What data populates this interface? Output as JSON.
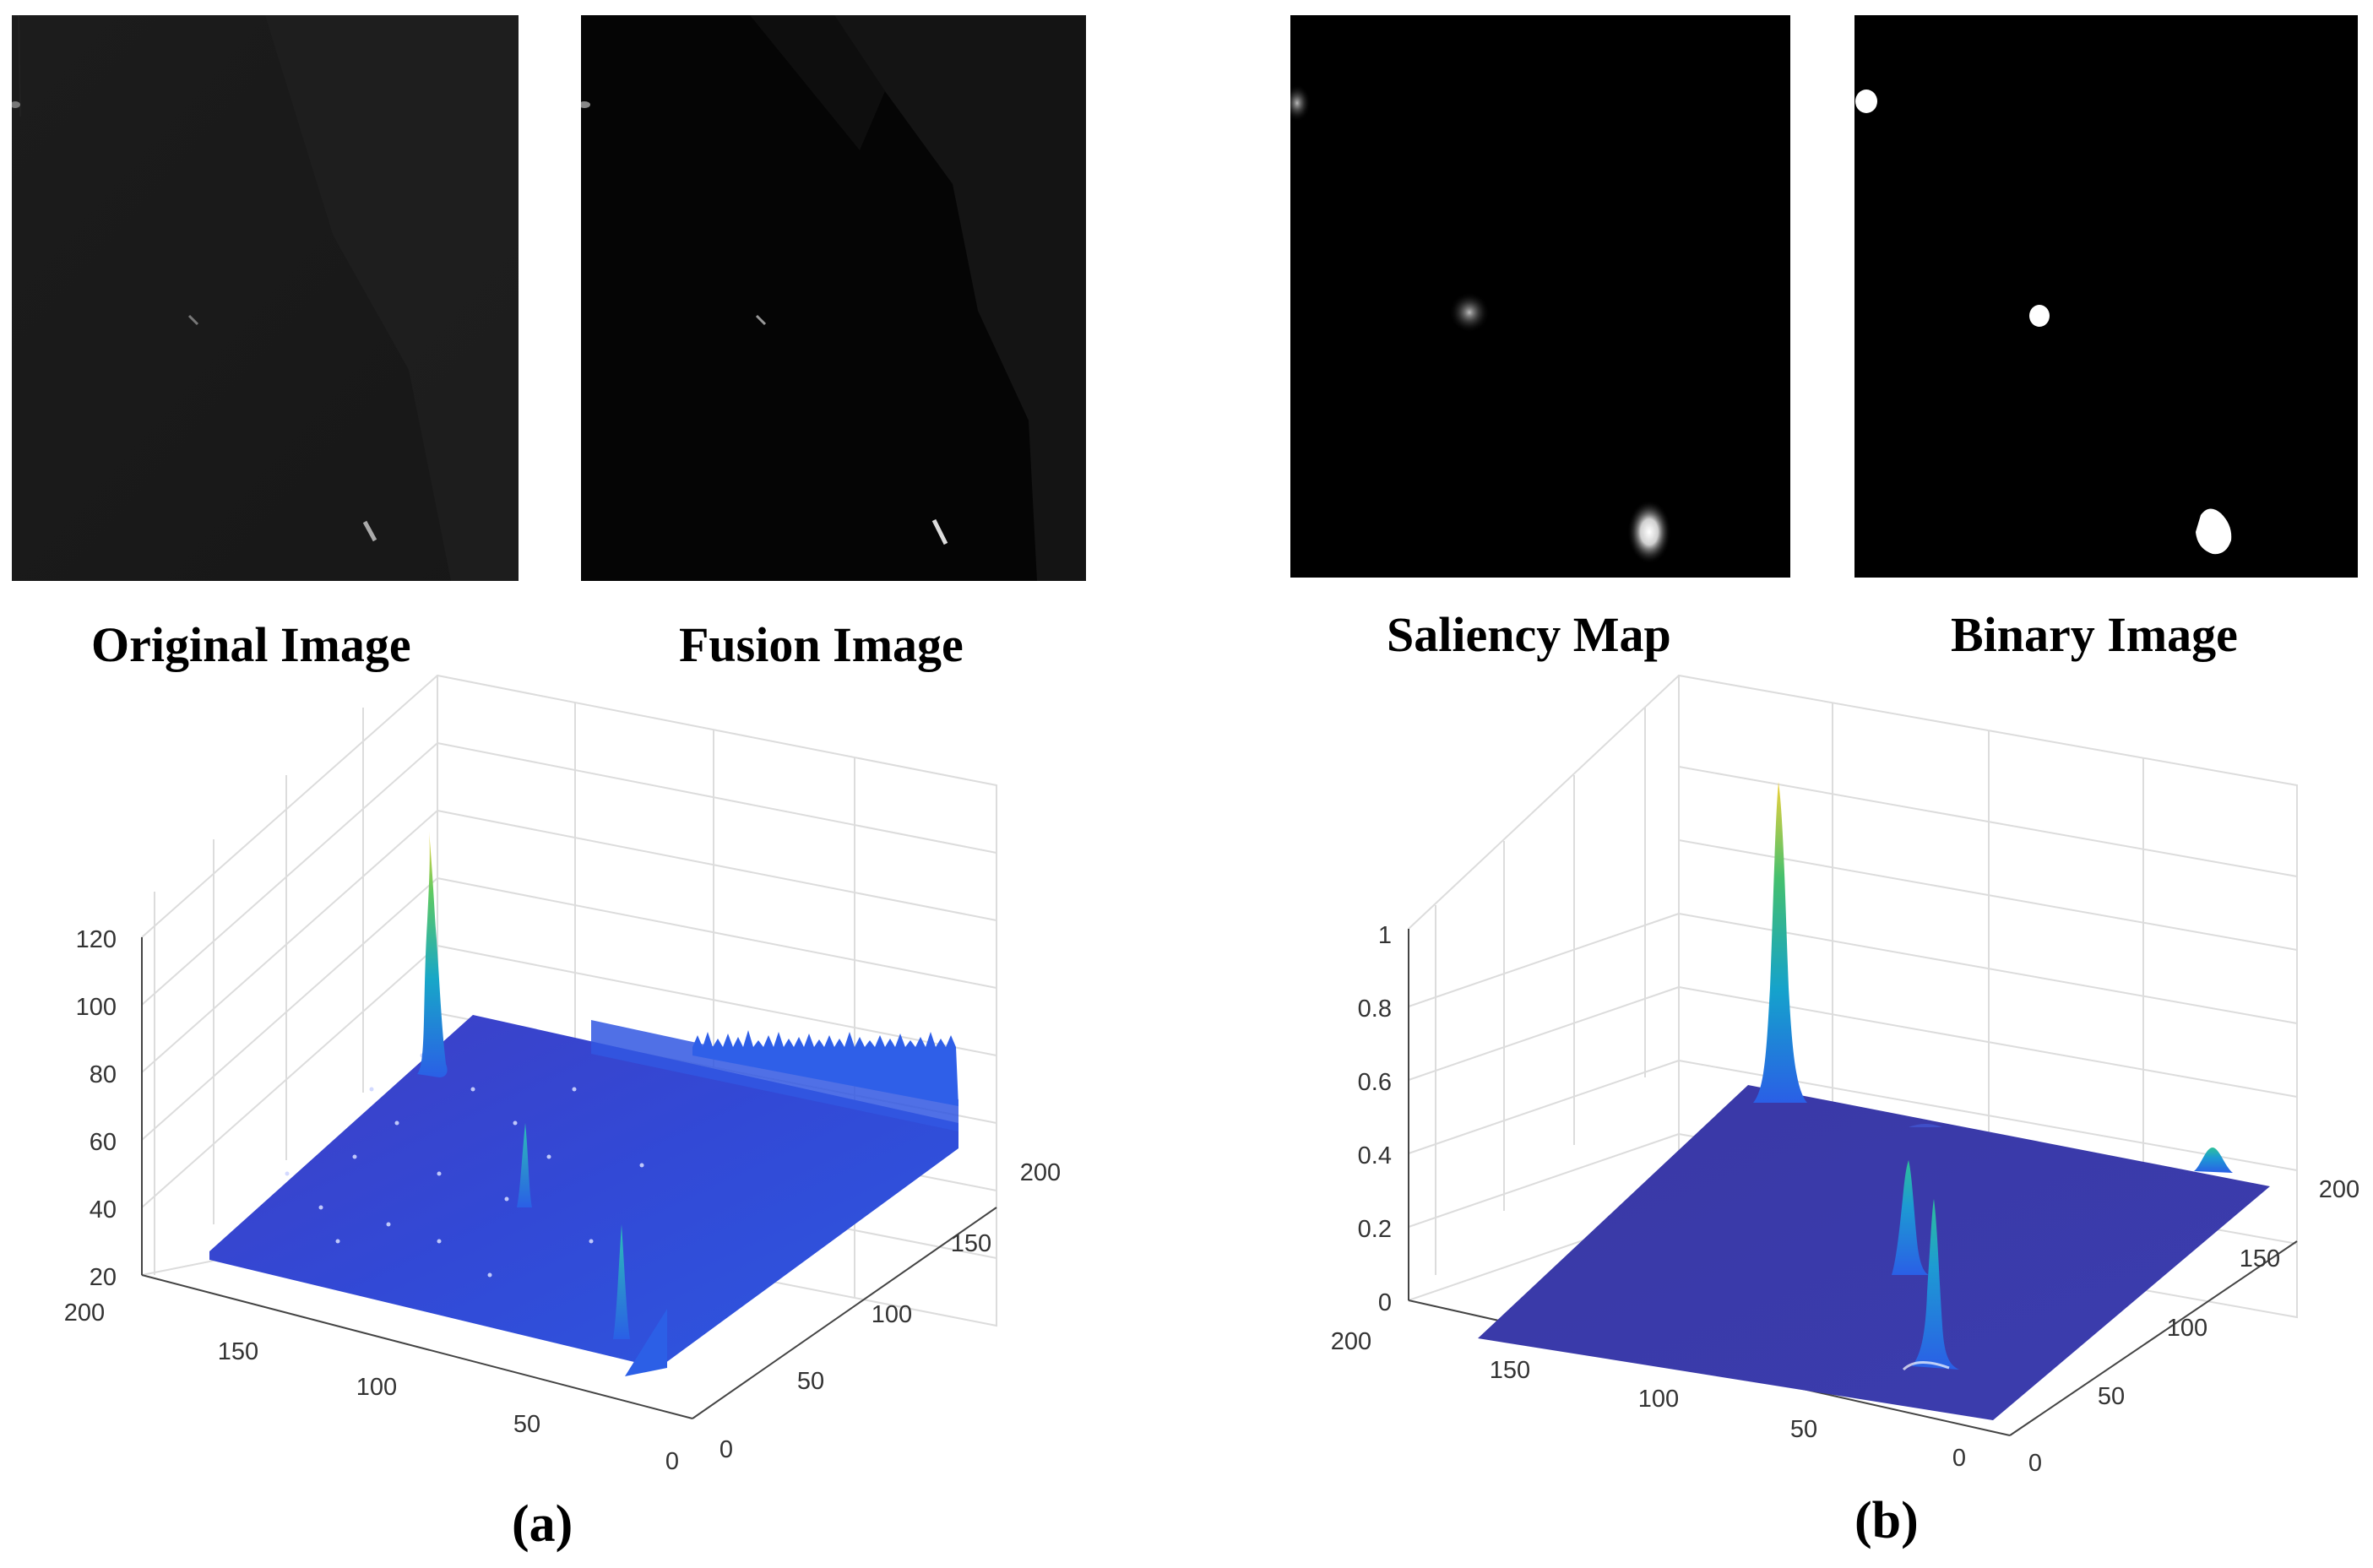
{
  "panels": {
    "original": {
      "caption": "Original Image"
    },
    "fusion": {
      "caption": "Fusion Image"
    },
    "saliency": {
      "caption": "Saliency Map"
    },
    "binary": {
      "caption": "Binary Image"
    }
  },
  "labels": {
    "a": "(a)",
    "b": "(b)"
  },
  "chart_data": [
    {
      "type": "surface",
      "panel": "a",
      "z_ticks": [
        "20",
        "40",
        "60",
        "80",
        "100",
        "120"
      ],
      "x_ticks": [
        "200",
        "150",
        "100",
        "50",
        "0"
      ],
      "y_ticks": [
        "0",
        "50",
        "100",
        "150",
        "200"
      ],
      "zlim": [
        20,
        120
      ],
      "xlim": [
        0,
        200
      ],
      "ylim": [
        0,
        200
      ],
      "grid": true,
      "colormap": "parula"
    },
    {
      "type": "surface",
      "panel": "b",
      "z_ticks": [
        "0",
        "0.2",
        "0.4",
        "0.6",
        "0.8",
        "1"
      ],
      "x_ticks": [
        "200",
        "150",
        "100",
        "50",
        "0"
      ],
      "y_ticks": [
        "0",
        "50",
        "100",
        "150",
        "200"
      ],
      "zlim": [
        0,
        1
      ],
      "xlim": [
        0,
        200
      ],
      "ylim": [
        0,
        200
      ],
      "grid": true,
      "colormap": "parula"
    }
  ]
}
